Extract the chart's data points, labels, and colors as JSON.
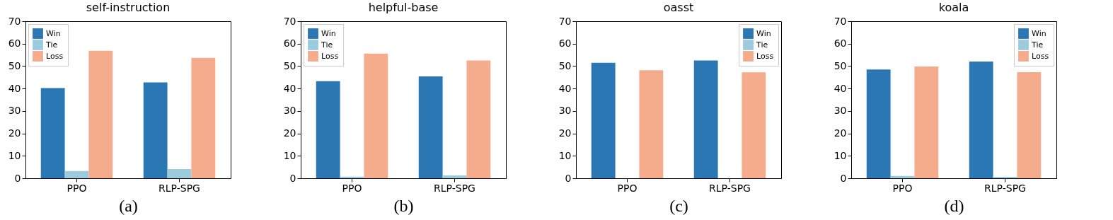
{
  "chart_data": [
    {
      "type": "bar",
      "title": "self-instruction",
      "categories": [
        "PPO",
        "RLP-SPG"
      ],
      "series": [
        {
          "name": "Win",
          "color": "#2a77b4",
          "values": [
            40.2,
            42.7
          ]
        },
        {
          "name": "Tie",
          "color": "#9ccbdd",
          "values": [
            3.2,
            4.1
          ]
        },
        {
          "name": "Loss",
          "color": "#f5ac8c",
          "values": [
            56.8,
            53.7
          ]
        }
      ],
      "ylim": [
        0,
        70
      ],
      "yticks": [
        0,
        10,
        20,
        30,
        40,
        50,
        60,
        70
      ],
      "grid": false,
      "legend": "top left",
      "annotations": [
        "(a)"
      ]
    },
    {
      "type": "bar",
      "title": "helpful-base",
      "categories": [
        "PPO",
        "RLP-SPG"
      ],
      "series": [
        {
          "name": "Win",
          "color": "#2a77b4",
          "values": [
            43.3,
            45.4
          ]
        },
        {
          "name": "Tie",
          "color": "#9ccbdd",
          "values": [
            0.7,
            1.3
          ]
        },
        {
          "name": "Loss",
          "color": "#f5ac8c",
          "values": [
            55.6,
            52.5
          ]
        }
      ],
      "ylim": [
        0,
        70
      ],
      "yticks": [
        0,
        10,
        20,
        30,
        40,
        50,
        60,
        70
      ],
      "grid": false,
      "legend": "top left",
      "annotations": [
        "(b)"
      ]
    },
    {
      "type": "bar",
      "title": "oasst",
      "categories": [
        "PPO",
        "RLP-SPG"
      ],
      "series": [
        {
          "name": "Win",
          "color": "#2a77b4",
          "values": [
            51.5,
            52.5
          ]
        },
        {
          "name": "Tie",
          "color": "#9ccbdd",
          "values": [
            0,
            0
          ]
        },
        {
          "name": "Loss",
          "color": "#f5ac8c",
          "values": [
            48.2,
            47.2
          ]
        }
      ],
      "ylim": [
        0,
        70
      ],
      "yticks": [
        0,
        10,
        20,
        30,
        40,
        50,
        60,
        70
      ],
      "grid": false,
      "legend": "top right",
      "annotations": [
        "(c)"
      ]
    },
    {
      "type": "bar",
      "title": "koala",
      "categories": [
        "PPO",
        "RLP-SPG"
      ],
      "series": [
        {
          "name": "Win",
          "color": "#2a77b4",
          "values": [
            48.5,
            52.0
          ]
        },
        {
          "name": "Tie",
          "color": "#9ccbdd",
          "values": [
            1.0,
            0.6
          ]
        },
        {
          "name": "Loss",
          "color": "#f5ac8c",
          "values": [
            49.8,
            47.3
          ]
        }
      ],
      "ylim": [
        0,
        70
      ],
      "yticks": [
        0,
        10,
        20,
        30,
        40,
        50,
        60,
        70
      ],
      "grid": false,
      "legend": "top right",
      "annotations": [
        "(d)"
      ]
    }
  ]
}
